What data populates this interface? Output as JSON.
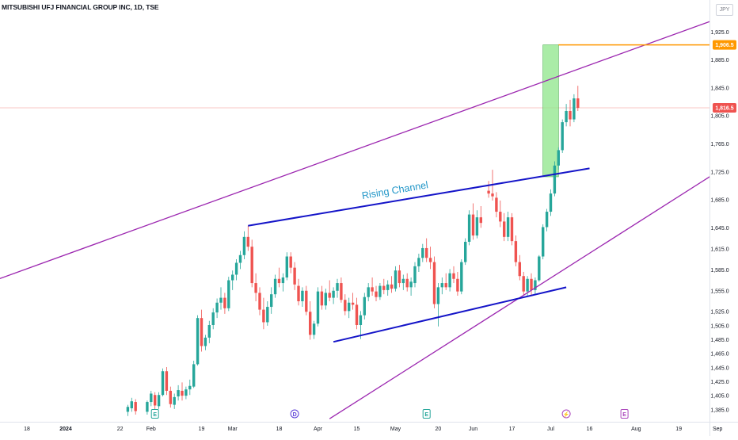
{
  "title": "MITSUBISHI UFJ FINANCIAL GROUP INC, 1D, TSE",
  "currency": "JPY",
  "colors": {
    "up": "#26a69a",
    "down": "#ef5350",
    "channel": "#9c27b0",
    "trend": "#1414c8",
    "target": "#ff9800",
    "projection_fill": "#8ee68a",
    "price_line": "#f7b4b0",
    "annotation": "#2196c8"
  },
  "chart_data": {
    "type": "candlestick",
    "title": "MITSUBISHI UFJ FINANCIAL GROUP INC, 1D, TSE",
    "ylim": [
      1370,
      1948
    ],
    "y_ticks": [
      "1,925.0",
      "1,885.0",
      "1,845.0",
      "1,805.0",
      "1,765.0",
      "1,725.0",
      "1,685.0",
      "1,645.0",
      "1,615.0",
      "1,585.0",
      "1,555.0",
      "1,525.0",
      "1,505.0",
      "1,485.0",
      "1,465.0",
      "1,445.0",
      "1,425.0",
      "1,405.0",
      "1,385.0"
    ],
    "x_ticks": [
      {
        "label": "18",
        "t": 0
      },
      {
        "label": "2024",
        "t": 10
      },
      {
        "label": "22",
        "t": 24
      },
      {
        "label": "Feb",
        "t": 32
      },
      {
        "label": "19",
        "t": 45
      },
      {
        "label": "Mar",
        "t": 53
      },
      {
        "label": "18",
        "t": 65
      },
      {
        "label": "Apr",
        "t": 75
      },
      {
        "label": "15",
        "t": 85
      },
      {
        "label": "May",
        "t": 95
      },
      {
        "label": "20",
        "t": 106
      },
      {
        "label": "Jun",
        "t": 115
      },
      {
        "label": "17",
        "t": 125
      },
      {
        "label": "Jul",
        "t": 135
      },
      {
        "label": "16",
        "t": 145
      },
      {
        "label": "Aug",
        "t": 157
      },
      {
        "label": "19",
        "t": 168
      },
      {
        "label": "Sep",
        "t": 178
      },
      {
        "label": "17",
        "t": 188
      }
    ],
    "last_price": 1816.5,
    "last_price_label": "1,816.5",
    "target_price": 1906.5,
    "target_label": "1,906.5",
    "candles": [
      [
        26,
        1382,
        1392,
        1376,
        1389
      ],
      [
        27,
        1387,
        1402,
        1382,
        1397
      ],
      [
        28,
        1396,
        1400,
        1378,
        1383
      ],
      [
        31,
        1382,
        1398,
        1378,
        1396
      ],
      [
        32,
        1396,
        1412,
        1390,
        1408
      ],
      [
        33,
        1406,
        1410,
        1385,
        1391
      ],
      [
        34,
        1390,
        1410,
        1386,
        1406
      ],
      [
        35,
        1406,
        1444,
        1404,
        1440
      ],
      [
        36,
        1440,
        1446,
        1406,
        1412
      ],
      [
        37,
        1412,
        1418,
        1388,
        1393
      ],
      [
        38,
        1392,
        1408,
        1386,
        1403
      ],
      [
        39,
        1404,
        1420,
        1398,
        1413
      ],
      [
        40,
        1412,
        1424,
        1398,
        1405
      ],
      [
        41,
        1405,
        1418,
        1400,
        1414
      ],
      [
        42,
        1414,
        1428,
        1406,
        1419
      ],
      [
        43,
        1418,
        1455,
        1416,
        1450
      ],
      [
        44,
        1450,
        1520,
        1448,
        1516
      ],
      [
        45,
        1516,
        1528,
        1468,
        1476
      ],
      [
        46,
        1476,
        1492,
        1470,
        1488
      ],
      [
        47,
        1488,
        1512,
        1480,
        1506
      ],
      [
        48,
        1506,
        1530,
        1500,
        1524
      ],
      [
        49,
        1524,
        1544,
        1516,
        1538
      ],
      [
        50,
        1538,
        1560,
        1528,
        1545
      ],
      [
        51,
        1545,
        1552,
        1522,
        1530
      ],
      [
        52,
        1530,
        1575,
        1526,
        1570
      ],
      [
        53,
        1570,
        1584,
        1556,
        1578
      ],
      [
        54,
        1578,
        1600,
        1570,
        1595
      ],
      [
        55,
        1595,
        1612,
        1586,
        1606
      ],
      [
        56,
        1606,
        1640,
        1600,
        1632
      ],
      [
        57,
        1632,
        1648,
        1612,
        1618
      ],
      [
        58,
        1618,
        1628,
        1560,
        1566
      ],
      [
        59,
        1566,
        1580,
        1540,
        1552
      ],
      [
        60,
        1552,
        1560,
        1520,
        1528
      ],
      [
        61,
        1528,
        1545,
        1500,
        1510
      ],
      [
        62,
        1510,
        1540,
        1505,
        1532
      ],
      [
        63,
        1532,
        1560,
        1522,
        1550
      ],
      [
        64,
        1550,
        1578,
        1545,
        1572
      ],
      [
        65,
        1572,
        1588,
        1560,
        1566
      ],
      [
        66,
        1566,
        1580,
        1554,
        1574
      ],
      [
        67,
        1574,
        1610,
        1570,
        1604
      ],
      [
        68,
        1604,
        1610,
        1580,
        1588
      ],
      [
        69,
        1588,
        1596,
        1556,
        1564
      ],
      [
        70,
        1562,
        1572,
        1534,
        1540
      ],
      [
        71,
        1540,
        1560,
        1532,
        1555
      ],
      [
        72,
        1555,
        1562,
        1520,
        1525
      ],
      [
        73,
        1525,
        1540,
        1485,
        1492
      ],
      [
        74,
        1492,
        1512,
        1486,
        1508
      ],
      [
        75,
        1508,
        1560,
        1504,
        1554
      ],
      [
        76,
        1554,
        1562,
        1528,
        1534
      ],
      [
        77,
        1534,
        1558,
        1528,
        1552
      ],
      [
        78,
        1552,
        1570,
        1540,
        1545
      ],
      [
        79,
        1545,
        1560,
        1536,
        1555
      ],
      [
        80,
        1555,
        1572,
        1545,
        1566
      ],
      [
        81,
        1566,
        1574,
        1538,
        1542
      ],
      [
        82,
        1542,
        1550,
        1520,
        1526
      ],
      [
        83,
        1526,
        1545,
        1516,
        1538
      ],
      [
        84,
        1538,
        1552,
        1528,
        1535
      ],
      [
        85,
        1535,
        1545,
        1500,
        1506
      ],
      [
        86,
        1506,
        1526,
        1486,
        1520
      ],
      [
        87,
        1520,
        1552,
        1514,
        1546
      ],
      [
        88,
        1546,
        1566,
        1540,
        1560
      ],
      [
        89,
        1560,
        1574,
        1548,
        1554
      ],
      [
        90,
        1554,
        1562,
        1540,
        1546
      ],
      [
        91,
        1546,
        1566,
        1542,
        1562
      ],
      [
        92,
        1562,
        1572,
        1550,
        1556
      ],
      [
        93,
        1556,
        1570,
        1548,
        1564
      ],
      [
        94,
        1564,
        1576,
        1552,
        1558
      ],
      [
        95,
        1558,
        1590,
        1554,
        1584
      ],
      [
        96,
        1584,
        1592,
        1560,
        1566
      ],
      [
        97,
        1566,
        1578,
        1556,
        1572
      ],
      [
        98,
        1572,
        1580,
        1554,
        1560
      ],
      [
        99,
        1560,
        1574,
        1548,
        1568
      ],
      [
        100,
        1566,
        1596,
        1560,
        1590
      ],
      [
        101,
        1590,
        1608,
        1582,
        1602
      ],
      [
        102,
        1602,
        1622,
        1596,
        1616
      ],
      [
        103,
        1616,
        1630,
        1596,
        1602
      ],
      [
        104,
        1602,
        1618,
        1586,
        1596
      ],
      [
        105,
        1596,
        1604,
        1530,
        1536
      ],
      [
        106,
        1536,
        1566,
        1504,
        1560
      ],
      [
        107,
        1560,
        1574,
        1550,
        1566
      ],
      [
        108,
        1566,
        1580,
        1556,
        1560
      ],
      [
        109,
        1560,
        1586,
        1554,
        1580
      ],
      [
        110,
        1580,
        1590,
        1566,
        1572
      ],
      [
        111,
        1572,
        1582,
        1548,
        1554
      ],
      [
        112,
        1554,
        1600,
        1550,
        1596
      ],
      [
        113,
        1596,
        1630,
        1592,
        1625
      ],
      [
        114,
        1625,
        1670,
        1620,
        1664
      ],
      [
        115,
        1664,
        1680,
        1628,
        1634
      ],
      [
        116,
        1634,
        1670,
        1630,
        1660
      ],
      [
        117,
        1660,
        1676,
        1645,
        1652
      ],
      [
        119,
        1698,
        1712,
        1688,
        1694
      ],
      [
        120,
        1694,
        1728,
        1684,
        1690
      ],
      [
        121,
        1688,
        1696,
        1660,
        1668
      ],
      [
        122,
        1668,
        1684,
        1646,
        1654
      ],
      [
        123,
        1654,
        1666,
        1626,
        1632
      ],
      [
        124,
        1632,
        1668,
        1626,
        1660
      ],
      [
        125,
        1660,
        1666,
        1620,
        1626
      ],
      [
        126,
        1626,
        1634,
        1590,
        1596
      ],
      [
        127,
        1596,
        1606,
        1570,
        1576
      ],
      [
        128,
        1576,
        1582,
        1548,
        1554
      ],
      [
        129,
        1554,
        1576,
        1548,
        1572
      ],
      [
        130,
        1572,
        1580,
        1548,
        1556
      ],
      [
        131,
        1556,
        1574,
        1550,
        1570
      ],
      [
        132,
        1570,
        1606,
        1568,
        1604
      ],
      [
        133,
        1604,
        1650,
        1600,
        1646
      ],
      [
        134,
        1646,
        1672,
        1640,
        1668
      ],
      [
        135,
        1668,
        1700,
        1662,
        1694
      ],
      [
        136,
        1694,
        1740,
        1690,
        1734
      ],
      [
        137,
        1734,
        1760,
        1728,
        1756
      ],
      [
        138,
        1756,
        1800,
        1752,
        1796
      ],
      [
        139,
        1796,
        1822,
        1790,
        1812
      ],
      [
        140,
        1812,
        1828,
        1790,
        1800
      ],
      [
        141,
        1800,
        1836,
        1796,
        1830
      ],
      [
        142,
        1830,
        1848,
        1812,
        1816.5
      ]
    ],
    "upper_channel": [
      [
        -58,
        1470
      ],
      [
        186,
        1960
      ]
    ],
    "lower_channel": [
      [
        78,
        1372
      ],
      [
        187,
        1757
      ]
    ],
    "upper_trendline": [
      [
        57,
        1648
      ],
      [
        145,
        1730
      ]
    ],
    "lower_trendline": [
      [
        79,
        1482
      ],
      [
        139,
        1560
      ]
    ],
    "projection_box": {
      "t1": 133,
      "t2": 137,
      "low": 1718,
      "high": 1906.5
    },
    "target_line": {
      "t1": 137,
      "price": 1906.5
    },
    "annotation_text": "Rising Channel",
    "annotation_anchor": {
      "t": 95,
      "price": 1694
    },
    "events": [
      {
        "label": "E",
        "t": 33,
        "type": "earnings"
      },
      {
        "label": "D",
        "t": 69,
        "type": "dividend"
      },
      {
        "label": "E",
        "t": 103,
        "type": "earnings"
      },
      {
        "label": "⚡",
        "t": 139,
        "type": "split"
      },
      {
        "label": "E",
        "t": 154,
        "type": "earnings-future"
      }
    ]
  }
}
